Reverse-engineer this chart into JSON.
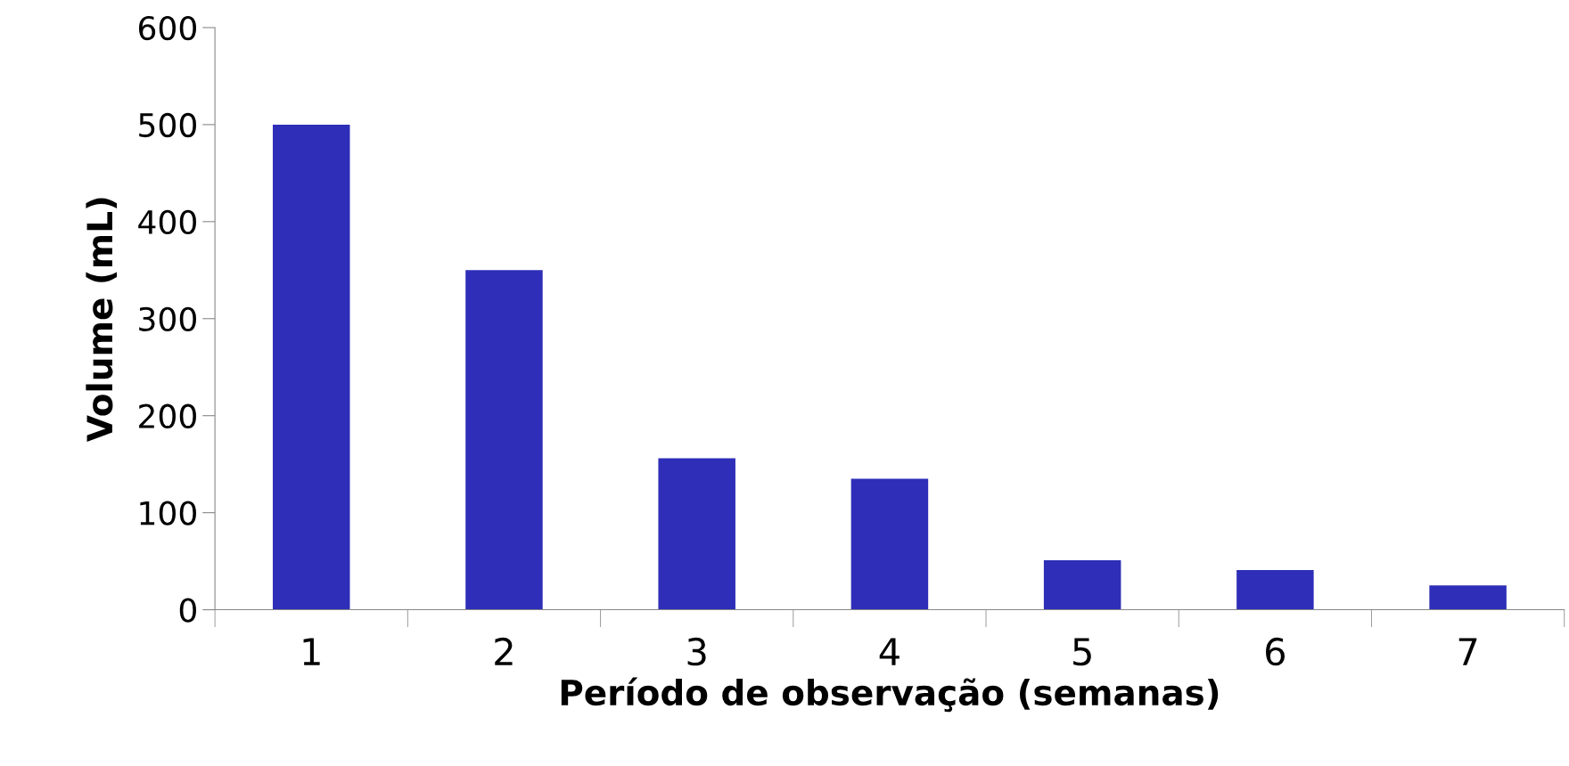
{
  "chart_data": {
    "type": "bar",
    "xlabel": "Período de observação (semanas)",
    "ylabel": "Volume (mL)",
    "categories": [
      "1",
      "2",
      "3",
      "4",
      "5",
      "6",
      "7"
    ],
    "values": [
      500,
      350,
      156,
      135,
      51,
      41,
      25
    ],
    "color": "#2e2eb8",
    "ylim": [
      0,
      600
    ],
    "yticks": [
      0,
      100,
      200,
      300,
      400,
      500,
      600
    ],
    "grid": false,
    "legend": false
  }
}
